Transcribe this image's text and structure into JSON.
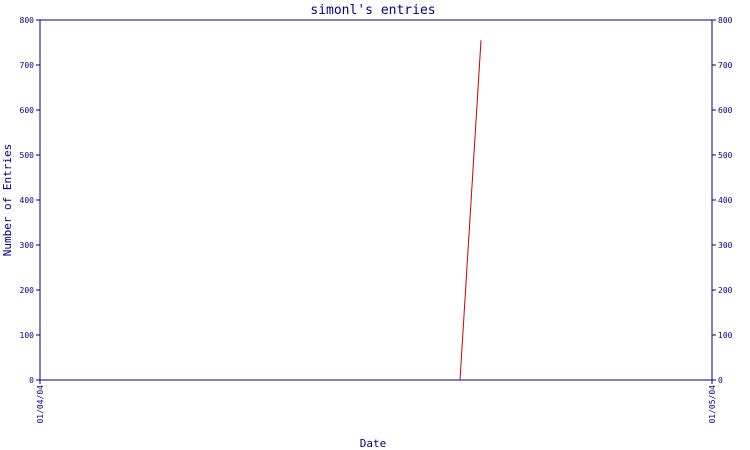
{
  "chart_data": {
    "type": "line",
    "title": "simonl's entries",
    "xlabel": "Date",
    "ylabel": "Number of Entries",
    "x_tick_labels": [
      "01/04/04",
      "01/05/04"
    ],
    "xlim": [
      "01/04/04",
      "01/05/04"
    ],
    "ylim": [
      0,
      800
    ],
    "y_ticks": [
      0,
      100,
      200,
      300,
      400,
      500,
      600,
      700,
      800
    ],
    "right_axis_mirrored": true,
    "grid": false,
    "legend": "none",
    "series": [
      {
        "color": "#cc0000",
        "points": [
          {
            "x": "01/04/04 15:00",
            "y": 0
          },
          {
            "x": "01/04/04 15:45",
            "y": 755
          }
        ]
      }
    ],
    "colors": {
      "axis": "#000080",
      "text": "#000080",
      "series": "#cc0000",
      "background": "#ffffff"
    }
  }
}
